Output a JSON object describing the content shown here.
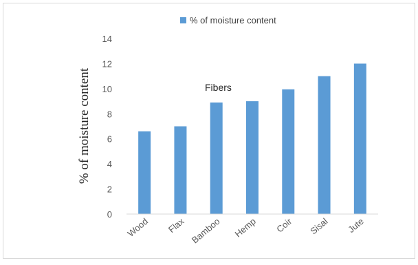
{
  "chart_data": {
    "type": "bar",
    "categories": [
      "Wood",
      "Flax",
      "Bamboo",
      "Hemp",
      "Coir",
      "Sisal",
      "Jute"
    ],
    "series": [
      {
        "name": "% of moisture content",
        "values": [
          6.6,
          7.0,
          8.9,
          9.0,
          9.95,
          11.0,
          12.0
        ],
        "color": "#5b9bd5"
      }
    ],
    "title": "",
    "xlabel": "",
    "ylabel": "% of  moisture  content",
    "annotation": "Fibers",
    "ylim": [
      0,
      14
    ],
    "yticks": [
      0,
      2,
      4,
      6,
      8,
      10,
      12,
      14
    ],
    "grid": false,
    "legend": "top",
    "axis_color": "#d9d9d9"
  }
}
